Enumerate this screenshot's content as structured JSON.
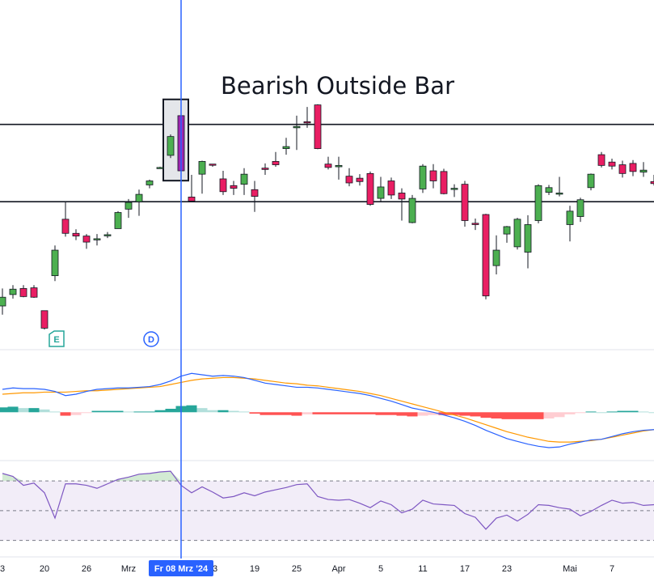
{
  "annotation": {
    "title": "Bearish Outside Bar"
  },
  "colors": {
    "up": "#4caf50",
    "down": "#e91e63",
    "outside_bar": "#9c27b0",
    "cursor": "#2962ff",
    "macd": "#2962ff",
    "signal": "#ff9800",
    "rsi": "#7e57c2",
    "hist_pos_strong": "#26a69a",
    "hist_pos_weak": "#b2dfdb",
    "hist_neg_strong": "#ff5252",
    "hist_neg_weak": "#ffcdd2"
  },
  "chart_data": {
    "type": "candlestick",
    "price_pane": {
      "ylim": [
        84,
        136
      ],
      "horizontal_levels": [
        117.5,
        106.0
      ],
      "candles": [
        [
          90.5,
          93.1,
          89.2,
          91.8
        ],
        [
          92.2,
          93.6,
          91.6,
          93.0
        ],
        [
          93.1,
          93.6,
          91.8,
          91.9
        ],
        [
          93.2,
          93.6,
          91.7,
          91.8
        ],
        [
          89.8,
          89.8,
          87.0,
          87.2
        ],
        [
          95.0,
          99.5,
          94.2,
          98.8
        ],
        [
          103.4,
          106.0,
          100.8,
          101.3
        ],
        [
          101.3,
          101.9,
          100.3,
          100.9
        ],
        [
          100.9,
          101.2,
          99.0,
          100.0
        ],
        [
          100.5,
          101.2,
          99.5,
          100.5
        ],
        [
          101.1,
          101.5,
          100.6,
          101.1
        ],
        [
          102.0,
          104.6,
          102.0,
          104.4
        ],
        [
          104.9,
          106.4,
          103.6,
          105.9
        ],
        [
          106.0,
          107.8,
          103.9,
          107.1
        ],
        [
          108.5,
          109.3,
          108.0,
          109.1
        ],
        [
          111.0,
          111.2,
          111.0,
          111.1
        ],
        [
          112.9,
          116.0,
          112.5,
          115.7
        ],
        [
          118.8,
          120.5,
          110.1,
          110.6
        ],
        [
          106.7,
          110.0,
          106.0,
          106.1
        ],
        [
          110.1,
          112.1,
          107.2,
          112.0
        ],
        [
          111.6,
          111.6,
          111.2,
          111.5
        ],
        [
          109.4,
          110.6,
          107.0,
          107.5
        ],
        [
          108.4,
          109.1,
          107.0,
          108.0
        ],
        [
          108.6,
          111.0,
          107.0,
          110.1
        ],
        [
          107.8,
          109.1,
          104.5,
          106.8
        ],
        [
          111.0,
          111.7,
          110.0,
          110.8
        ],
        [
          112.0,
          113.4,
          111.2,
          111.5
        ],
        [
          113.9,
          115.5,
          113.0,
          114.2
        ],
        [
          117.0,
          118.8,
          113.7,
          117.2
        ],
        [
          117.9,
          120.1,
          117.0,
          117.8
        ],
        [
          120.4,
          120.5,
          113.8,
          113.9
        ],
        [
          111.6,
          112.7,
          110.8,
          111.1
        ],
        [
          111.2,
          112.7,
          109.3,
          111.4
        ],
        [
          109.8,
          111.0,
          108.3,
          108.8
        ],
        [
          109.5,
          110.1,
          108.4,
          109.0
        ],
        [
          110.2,
          110.5,
          105.4,
          105.6
        ],
        [
          106.5,
          109.7,
          106.0,
          108.2
        ],
        [
          109.1,
          109.6,
          106.4,
          107.0
        ],
        [
          107.3,
          108.0,
          103.2,
          106.4
        ],
        [
          102.9,
          107.0,
          102.8,
          106.5
        ],
        [
          107.9,
          111.6,
          107.3,
          111.3
        ],
        [
          110.6,
          111.6,
          108.0,
          109.1
        ],
        [
          110.5,
          110.9,
          107.1,
          107.2
        ],
        [
          108.0,
          108.6,
          106.7,
          108.0
        ],
        [
          108.6,
          109.1,
          102.3,
          103.2
        ],
        [
          102.8,
          103.5,
          101.8,
          102.6
        ],
        [
          104.1,
          104.2,
          91.5,
          92.0
        ],
        [
          96.5,
          101.0,
          95.2,
          98.8
        ],
        [
          101.2,
          102.4,
          99.9,
          102.3
        ],
        [
          99.3,
          103.6,
          98.9,
          103.4
        ],
        [
          98.5,
          104.0,
          96.1,
          102.6
        ],
        [
          103.2,
          108.6,
          102.8,
          108.4
        ],
        [
          107.4,
          108.5,
          107.0,
          108.1
        ],
        [
          107.2,
          109.7,
          106.8,
          107.3
        ],
        [
          102.6,
          105.4,
          100.1,
          104.6
        ],
        [
          103.8,
          106.6,
          103.0,
          106.3
        ],
        [
          108.1,
          110.2,
          107.7,
          110.1
        ],
        [
          113.0,
          113.4,
          111.1,
          111.4
        ],
        [
          111.9,
          112.4,
          110.8,
          111.3
        ],
        [
          111.5,
          112.1,
          109.6,
          110.2
        ],
        [
          111.7,
          112.2,
          109.8,
          110.5
        ],
        [
          110.4,
          111.9,
          109.7,
          110.7
        ],
        [
          109.0,
          110.0,
          108.4,
          108.7
        ]
      ]
    },
    "macd_pane": {
      "ylim": [
        -6.5,
        7.5
      ],
      "macd": [
        3.3,
        3.5,
        3.4,
        3.4,
        3.3,
        3.0,
        2.4,
        2.6,
        3.0,
        3.3,
        3.4,
        3.5,
        3.5,
        3.6,
        3.7,
        4.0,
        4.5,
        5.2,
        5.6,
        5.4,
        5.2,
        5.3,
        5.2,
        5.0,
        4.6,
        4.2,
        4.0,
        3.8,
        3.6,
        3.6,
        3.5,
        3.3,
        3.1,
        2.9,
        2.7,
        2.4,
        2.0,
        1.6,
        1.1,
        0.6,
        0.3,
        0.0,
        -0.4,
        -0.8,
        -1.3,
        -1.9,
        -2.6,
        -3.2,
        -3.8,
        -4.2,
        -4.6,
        -4.9,
        -5.1,
        -5.0,
        -4.6,
        -4.3,
        -4.0,
        -3.9,
        -3.5,
        -3.1,
        -2.8,
        -2.6,
        -2.5
      ],
      "signal": [
        2.6,
        2.7,
        2.8,
        2.8,
        2.9,
        2.9,
        2.9,
        3.0,
        3.1,
        3.1,
        3.2,
        3.3,
        3.4,
        3.5,
        3.6,
        3.7,
        4.0,
        4.3,
        4.6,
        4.8,
        4.9,
        5.0,
        5.0,
        4.9,
        4.8,
        4.6,
        4.4,
        4.2,
        4.1,
        3.9,
        3.8,
        3.6,
        3.4,
        3.2,
        3.0,
        2.7,
        2.4,
        2.0,
        1.6,
        1.2,
        0.8,
        0.4,
        0.0,
        -0.4,
        -0.8,
        -1.3,
        -1.8,
        -2.3,
        -2.8,
        -3.2,
        -3.6,
        -3.9,
        -4.2,
        -4.3,
        -4.3,
        -4.2,
        -4.1,
        -3.9,
        -3.6,
        -3.3,
        -3.0,
        -2.7,
        -2.5
      ],
      "histogram": [
        0.7,
        0.8,
        0.6,
        0.6,
        0.4,
        0.1,
        -0.5,
        -0.4,
        -0.1,
        0.2,
        0.2,
        0.2,
        0.1,
        0.1,
        0.1,
        0.3,
        0.5,
        0.9,
        1.0,
        0.6,
        0.3,
        0.3,
        0.2,
        0.1,
        -0.2,
        -0.4,
        -0.4,
        -0.4,
        -0.5,
        -0.3,
        -0.3,
        -0.3,
        -0.3,
        -0.3,
        -0.3,
        -0.3,
        -0.4,
        -0.4,
        -0.5,
        -0.6,
        -0.5,
        -0.4,
        -0.4,
        -0.4,
        -0.5,
        -0.6,
        -0.8,
        -0.9,
        -1.0,
        -1.0,
        -1.0,
        -1.0,
        -0.9,
        -0.7,
        -0.3,
        -0.1,
        0.1,
        0.0,
        0.1,
        0.2,
        0.2,
        0.1,
        0.0
      ]
    },
    "rsi_pane": {
      "ylim": [
        20,
        82
      ],
      "levels": [
        70,
        50,
        30
      ],
      "values": [
        75.0,
        73.0,
        67.0,
        68.5,
        62.0,
        45.0,
        68.0,
        68.0,
        67.0,
        65.0,
        68.0,
        71.0,
        72.5,
        74.5,
        75.0,
        76.0,
        76.5,
        67.0,
        62.0,
        66.0,
        62.5,
        58.5,
        59.5,
        62.0,
        60.0,
        62.5,
        64.0,
        65.5,
        67.5,
        68.0,
        59.5,
        57.5,
        57.0,
        57.5,
        55.0,
        52.0,
        56.5,
        54.0,
        48.5,
        51.0,
        57.0,
        54.5,
        54.0,
        53.5,
        48.0,
        45.5,
        37.5,
        45.0,
        47.0,
        43.0,
        47.5,
        54.0,
        53.5,
        52.0,
        51.0,
        46.5,
        49.5,
        53.5,
        57.0,
        55.0,
        55.5,
        53.5,
        54.0
      ]
    },
    "x_ticks": [
      {
        "index": 0,
        "label": "3"
      },
      {
        "index": 4,
        "label": "20"
      },
      {
        "index": 8,
        "label": "26"
      },
      {
        "index": 12,
        "label": "Mrz"
      },
      {
        "index": 20,
        "label": "13"
      },
      {
        "index": 24,
        "label": "19"
      },
      {
        "index": 28,
        "label": "25"
      },
      {
        "index": 32,
        "label": "Apr"
      },
      {
        "index": 36,
        "label": "5"
      },
      {
        "index": 40,
        "label": "11"
      },
      {
        "index": 44,
        "label": "17"
      },
      {
        "index": 48,
        "label": "23"
      },
      {
        "index": 54,
        "label": "Mai"
      },
      {
        "index": 58,
        "label": "7"
      }
    ],
    "crosshair": {
      "index": 17,
      "label": "Fr 08 Mrz '24"
    },
    "highlight_box": {
      "from_index": 16,
      "to_index": 17
    },
    "event_markers": [
      {
        "index": 5,
        "label": "E"
      },
      {
        "index": 14,
        "label": "D"
      }
    ]
  }
}
